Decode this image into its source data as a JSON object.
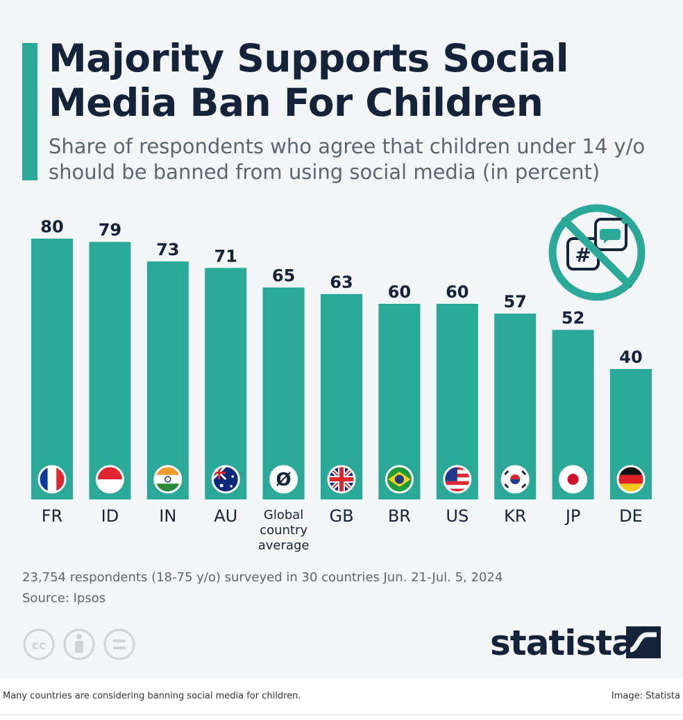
{
  "header": {
    "title": "Majority Supports Social Media Ban For Children",
    "subtitle": "Share of respondents who agree that children under 14 y/o should be banned from using social media (in percent)"
  },
  "chart_data": {
    "type": "bar",
    "title": "Majority Supports Social Media Ban For Children",
    "subtitle": "Share of respondents who agree that children under 14 y/o should be banned from using social media (in percent)",
    "categories": [
      "FR",
      "ID",
      "IN",
      "AU",
      "Global country average",
      "GB",
      "BR",
      "US",
      "KR",
      "JP",
      "DE"
    ],
    "values": [
      80,
      79,
      73,
      71,
      65,
      63,
      60,
      60,
      57,
      52,
      40
    ],
    "ylim": [
      0,
      80
    ],
    "grid": false,
    "data_labels": true,
    "bar_color": "#2aa898",
    "category_markers": [
      "flag-france-icon",
      "flag-indonesia-icon",
      "flag-india-icon",
      "flag-australia-icon",
      "average-symbol-icon",
      "flag-uk-icon",
      "flag-brazil-icon",
      "flag-usa-icon",
      "flag-korea-icon",
      "flag-japan-icon",
      "flag-germany-icon"
    ]
  },
  "average_symbol": "Ø",
  "footer": {
    "note": "23,754 respondents (18-75 y/o) surveyed in 30 countries Jun. 21-Jul. 5, 2024",
    "source": "Source: Ipsos",
    "brand": "statista",
    "license_icons": [
      "cc-icon",
      "attribution-icon",
      "no-derivatives-icon"
    ]
  },
  "caption": {
    "text": "Many countries are considering banning social media for children.",
    "credit": "Image: Statista"
  },
  "colors": {
    "accent": "#2aa898",
    "text_dark": "#14233a",
    "text_muted": "#5b6670",
    "background": "#f3f5f7"
  }
}
